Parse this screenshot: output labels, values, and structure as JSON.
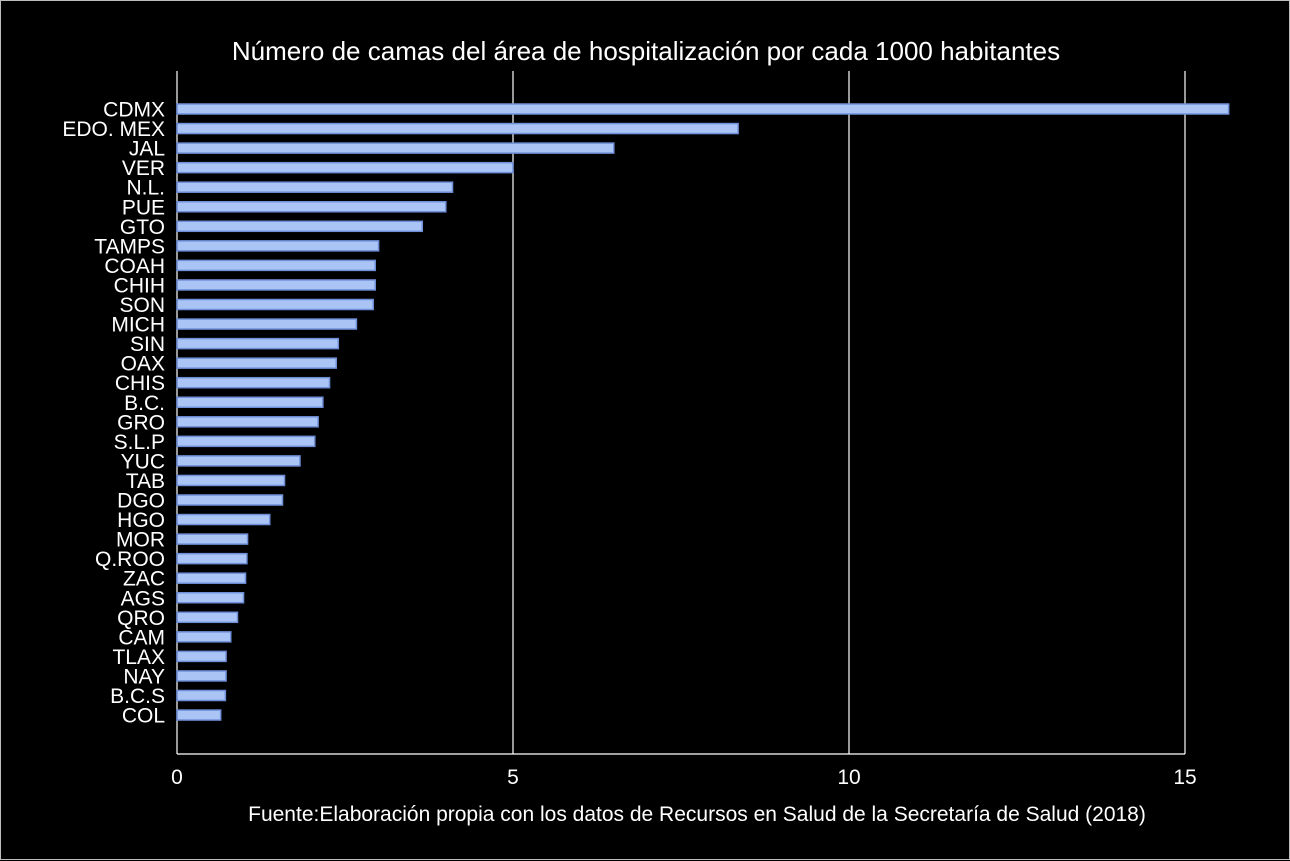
{
  "chart_data": {
    "type": "bar",
    "orientation": "horizontal",
    "title": "Número de camas del área de hospitalización por cada 1000 habitantes",
    "caption": "Fuente:Elaboración propia con los datos de Recursos en Salud de la Secretaría de Salud (2018)",
    "xlabel": "",
    "ylabel": "",
    "xlim": [
      0,
      16
    ],
    "xticks": [
      0,
      5,
      10,
      15
    ],
    "grid": "vertical",
    "colors": {
      "background": "#000000",
      "bar_fill": "#a9c4f5",
      "bar_edge": "#6f8fd8",
      "text": "#ffffff",
      "grid": "#ffffff"
    },
    "categories": [
      "CDMX",
      "EDO. MEX",
      "JAL",
      "VER",
      "N.L.",
      "PUE",
      "GTO",
      "TAMPS",
      "COAH",
      "CHIH",
      "SON",
      "MICH",
      "SIN",
      "OAX",
      "CHIS",
      "B.C.",
      "GRO",
      "S.L.P",
      "YUC",
      "TAB",
      "DGO",
      "HGO",
      "MOR",
      "Q.ROO",
      "ZAC",
      "AGS",
      "QRO",
      "CAM",
      "TLAX",
      "NAY",
      "B.C.S",
      "COL"
    ],
    "values": [
      15.65,
      8.35,
      6.5,
      5.0,
      4.1,
      4.0,
      3.65,
      3.0,
      2.95,
      2.95,
      2.92,
      2.67,
      2.4,
      2.37,
      2.27,
      2.17,
      2.1,
      2.05,
      1.83,
      1.6,
      1.57,
      1.38,
      1.05,
      1.04,
      1.02,
      0.99,
      0.9,
      0.8,
      0.73,
      0.73,
      0.72,
      0.65
    ]
  }
}
